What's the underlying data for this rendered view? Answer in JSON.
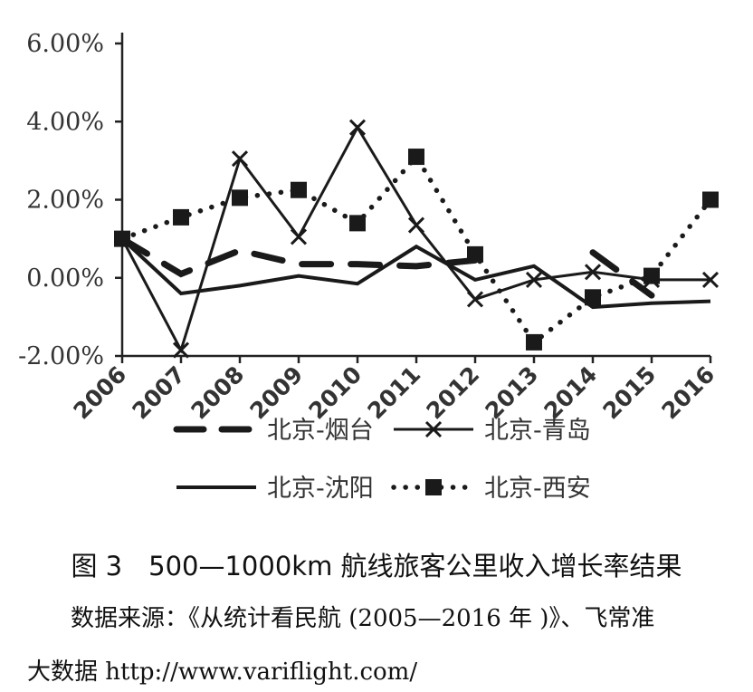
{
  "chart_data": {
    "type": "line",
    "categories": [
      "2006",
      "2007",
      "2008",
      "2009",
      "2010",
      "2011",
      "2012",
      "2013",
      "2014",
      "2015",
      "2016"
    ],
    "ylim": [
      -2,
      6
    ],
    "yticks": [
      6,
      4,
      2,
      0,
      -2
    ],
    "ytick_labels": [
      "6.00%",
      "4.00%",
      "2.00%",
      "0.00%",
      "-2.00%"
    ],
    "legend_position": "bottom",
    "series": [
      {
        "name": "北京-烟台",
        "style": "dash-thick",
        "values": [
          1.0,
          0.1,
          0.7,
          0.35,
          0.35,
          0.3,
          0.45,
          null,
          0.65,
          -0.45,
          null
        ]
      },
      {
        "name": "北京-青岛",
        "style": "line-x",
        "values": [
          1.0,
          -1.85,
          3.05,
          1.05,
          3.85,
          1.35,
          -0.55,
          -0.05,
          0.15,
          -0.05,
          -0.05
        ]
      },
      {
        "name": "北京-沈阳",
        "style": "line-solid",
        "values": [
          1.0,
          -0.4,
          -0.2,
          0.05,
          -0.15,
          0.8,
          -0.05,
          0.3,
          -0.75,
          -0.65,
          -0.6
        ]
      },
      {
        "name": "北京-西安",
        "style": "dot-square",
        "values": [
          1.0,
          1.55,
          2.05,
          2.25,
          1.4,
          3.1,
          0.6,
          -1.65,
          -0.5,
          0.05,
          2.0
        ]
      }
    ],
    "colors": {
      "ink": "#1a1a1a",
      "axis": "#222222"
    }
  },
  "caption": "图 3　500—1000km 航线旅客公里收入增长率结果",
  "source_line1": "数据来源：《从统计看民航 (2005—2016 年 )》、飞常准",
  "source_line2": "大数据 http://www.variflight.com/"
}
